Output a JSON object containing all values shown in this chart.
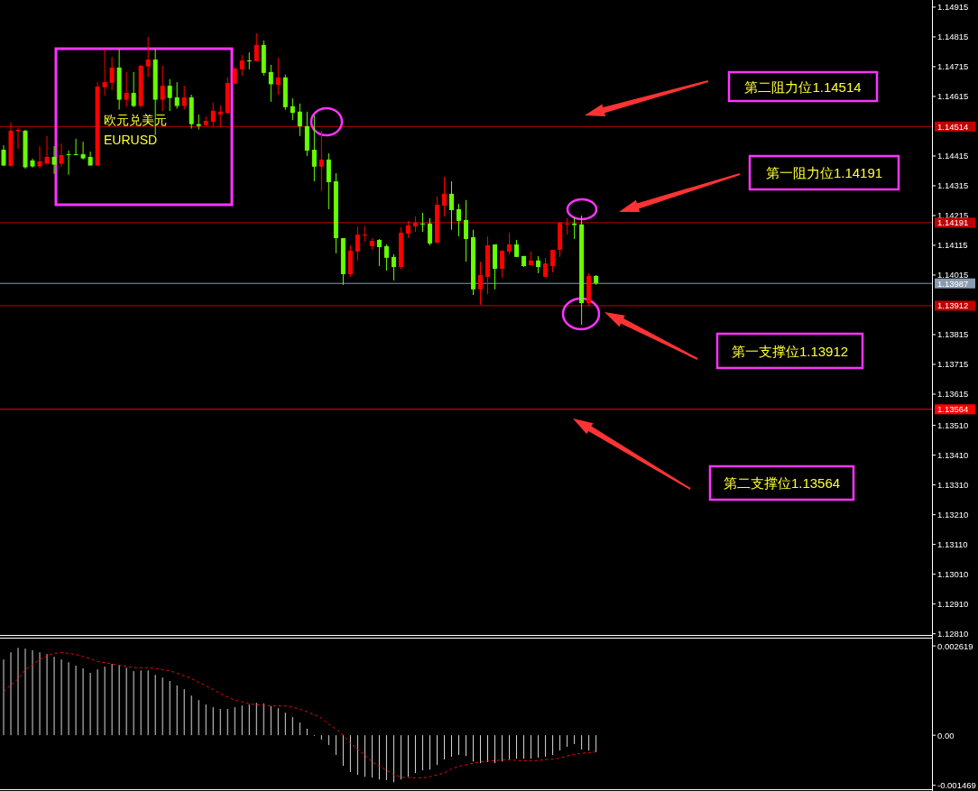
{
  "chart_data": [
    {
      "type": "candlestick",
      "title": "欧元兑美元",
      "subtitle": "EURUSD",
      "tick_labels": "y",
      "categories": [
        null,
        null,
        null,
        null,
        null,
        null,
        null,
        null,
        null,
        null,
        null,
        null,
        null,
        null,
        null,
        null,
        null,
        null,
        null,
        null,
        null,
        null,
        null,
        null,
        null,
        null,
        null,
        null,
        null,
        null,
        null,
        null,
        null,
        null,
        null,
        null,
        null,
        null,
        null,
        null,
        null,
        null,
        null,
        null,
        null,
        null,
        null,
        null,
        null,
        null,
        null,
        null,
        null,
        null,
        null,
        null,
        null,
        null,
        null,
        null,
        null,
        null,
        null,
        null,
        null,
        null,
        null,
        null,
        null,
        null,
        null,
        null,
        null,
        null,
        null,
        null,
        null,
        null,
        null,
        null,
        null,
        null,
        null,
        null,
        null,
        null,
        null,
        null,
        null,
        null,
        null,
        null,
        null,
        null,
        null,
        null,
        null,
        null,
        null,
        null,
        null,
        null,
        null,
        null,
        null,
        null,
        null,
        null,
        null,
        null,
        null,
        null,
        null,
        null,
        null,
        null,
        null,
        null,
        null,
        null,
        null,
        null,
        null,
        null,
        null,
        null,
        null,
        null,
        null
      ],
      "ohlc": [
        [
          1.14436,
          1.14451,
          1.14381,
          1.14383
        ],
        [
          1.14382,
          1.14527,
          1.14379,
          1.145
        ],
        [
          1.14498,
          1.14509,
          1.14439,
          1.14503
        ],
        [
          1.145,
          1.14503,
          1.14372,
          1.14377
        ],
        [
          1.144,
          1.14406,
          1.14376,
          1.1438
        ],
        [
          1.1438,
          1.14448,
          1.14374,
          1.14397
        ],
        [
          1.14389,
          1.14482,
          1.14389,
          1.14412
        ],
        [
          1.14412,
          1.14448,
          1.14355,
          1.14386
        ],
        [
          1.14389,
          1.14457,
          1.14379,
          1.14418
        ],
        [
          1.14421,
          1.14433,
          1.14352,
          1.14419
        ],
        [
          1.14421,
          1.14473,
          1.14418,
          1.14419
        ],
        [
          1.14421,
          1.14463,
          1.14403,
          1.14407
        ],
        [
          1.14412,
          1.1443,
          1.14383,
          1.14383
        ],
        [
          1.14383,
          1.14663,
          1.14383,
          1.14648
        ],
        [
          1.14646,
          1.14773,
          1.14618,
          1.14663
        ],
        [
          1.14661,
          1.14748,
          1.14636,
          1.14712
        ],
        [
          1.14712,
          1.14773,
          1.14571,
          1.14604
        ],
        [
          1.14604,
          1.14697,
          1.1458,
          1.14627
        ],
        [
          1.14627,
          1.14697,
          1.14579,
          1.14583
        ],
        [
          1.14583,
          1.14721,
          1.14577,
          1.14718
        ],
        [
          1.14716,
          1.14815,
          1.1468,
          1.14739
        ],
        [
          1.14739,
          1.14773,
          1.14485,
          1.14604
        ],
        [
          1.14604,
          1.14718,
          1.14566,
          1.14651
        ],
        [
          1.14651,
          1.14673,
          1.14566,
          1.1461
        ],
        [
          1.14612,
          1.14663,
          1.14574,
          1.14583
        ],
        [
          1.14583,
          1.14651,
          1.14571,
          1.14612
        ],
        [
          1.14612,
          1.14621,
          1.14507,
          1.14522
        ],
        [
          1.14522,
          1.14554,
          1.14504,
          1.14516
        ],
        [
          1.14519,
          1.14548,
          1.14516,
          1.14533
        ],
        [
          1.1453,
          1.14594,
          1.14515,
          1.14567
        ],
        [
          1.14555,
          1.14585,
          1.14512,
          1.14564
        ],
        [
          1.1456,
          1.14679,
          1.14557,
          1.1466
        ],
        [
          1.14658,
          1.14712,
          1.14656,
          1.14709
        ],
        [
          1.14706,
          1.14754,
          1.14685,
          1.14736
        ],
        [
          1.14736,
          1.14763,
          1.14706,
          1.14734
        ],
        [
          1.14733,
          1.14827,
          1.14733,
          1.14788
        ],
        [
          1.14788,
          1.14803,
          1.14685,
          1.14694
        ],
        [
          1.14697,
          1.14721,
          1.14597,
          1.14656
        ],
        [
          1.14654,
          1.14745,
          1.14621,
          1.14679
        ],
        [
          1.14679,
          1.14688,
          1.1457,
          1.14579
        ],
        [
          1.14582,
          1.14609,
          1.14536,
          1.1456
        ],
        [
          1.14564,
          1.14591,
          1.14482,
          1.14515
        ],
        [
          1.14515,
          1.14564,
          1.14415,
          1.14433
        ],
        [
          1.14436,
          1.14551,
          1.1433,
          1.14379
        ],
        [
          1.14379,
          1.145,
          1.14297,
          1.14403
        ],
        [
          1.14403,
          1.14424,
          1.14236,
          1.14327
        ],
        [
          1.1433,
          1.14357,
          1.14088,
          1.14139
        ],
        [
          1.14139,
          1.14139,
          1.13982,
          1.14018
        ],
        [
          1.14018,
          1.14115,
          1.14009,
          1.14097
        ],
        [
          1.14094,
          1.14179,
          1.14064,
          1.14151
        ],
        [
          1.14149,
          1.14179,
          1.14127,
          1.14151
        ],
        [
          1.14112,
          1.14139,
          1.141,
          1.1413
        ],
        [
          1.14133,
          1.14136,
          1.14045,
          1.14109
        ],
        [
          1.14112,
          1.14118,
          1.1403,
          1.14073
        ],
        [
          1.14076,
          1.14085,
          1.13997,
          1.14042
        ],
        [
          1.14042,
          1.14176,
          1.14036,
          1.14157
        ],
        [
          1.14154,
          1.14197,
          1.14139,
          1.14182
        ],
        [
          1.14179,
          1.14212,
          1.1416,
          1.14191
        ],
        [
          1.14188,
          1.14224,
          1.1416,
          1.14186
        ],
        [
          1.14188,
          1.14206,
          1.14115,
          1.14121
        ],
        [
          1.14124,
          1.14279,
          1.14121,
          1.14251
        ],
        [
          1.14248,
          1.14345,
          1.14212,
          1.14288
        ],
        [
          1.14288,
          1.1433,
          1.14167,
          1.14233
        ],
        [
          1.14236,
          1.14254,
          1.14145,
          1.14197
        ],
        [
          1.142,
          1.14267,
          1.1406,
          1.14136
        ],
        [
          1.14142,
          1.14167,
          1.13948,
          1.13967
        ],
        [
          1.13967,
          1.1406,
          1.13915,
          1.14015
        ],
        [
          1.14009,
          1.14145,
          1.13951,
          1.14115
        ],
        [
          1.14118,
          1.14118,
          1.13967,
          1.14036
        ],
        [
          1.14036,
          1.14097,
          1.14006,
          1.14097
        ],
        [
          1.14094,
          1.14157,
          1.14085,
          1.14118
        ],
        [
          1.14118,
          1.14133,
          1.14076,
          1.14076
        ],
        [
          1.14079,
          1.14079,
          1.14042,
          1.14045
        ],
        [
          1.14048,
          1.14094,
          1.14048,
          1.14064
        ],
        [
          1.14064,
          1.14079,
          1.14021,
          1.14042
        ],
        [
          1.14009,
          1.14073,
          1.14009,
          1.14054
        ],
        [
          1.14045,
          1.141,
          1.14024,
          1.141
        ],
        [
          1.141,
          1.14191,
          1.14076,
          1.14191
        ],
        [
          1.14185,
          1.14206,
          1.14151,
          1.14188
        ],
        [
          1.14188,
          1.14209,
          1.14136,
          1.14183
        ],
        [
          1.14185,
          1.14215,
          1.13848,
          1.13921
        ],
        [
          1.13921,
          1.14021,
          1.13912,
          1.14012
        ],
        [
          1.14012,
          1.14015,
          1.13982,
          1.13988
        ],
        null,
        null,
        null,
        null,
        null,
        null,
        null,
        null,
        null,
        null,
        null,
        null,
        null,
        null,
        null,
        null,
        null,
        null,
        null,
        null,
        null,
        null,
        null,
        null,
        null,
        null,
        null,
        null,
        null,
        null,
        null,
        null,
        null,
        null,
        null,
        null,
        null,
        null,
        null,
        null,
        null,
        null,
        null,
        null,
        null,
        null
      ],
      "colors": [
        "#66ff00",
        "#ff0000",
        "#ff0000",
        "#66ff00",
        "#66ff00",
        "#ff0000",
        "#ff0000",
        "#66ff00",
        "#ff0000",
        "#66ff00",
        "#66ff00",
        "#66ff00",
        "#66ff00",
        "#ff0000",
        "#ff0000",
        "#ff0000",
        "#66ff00",
        "#ff0000",
        "#66ff00",
        "#ff0000",
        "#ff0000",
        "#66ff00",
        "#ff0000",
        "#66ff00",
        "#66ff00",
        "#ff0000",
        "#66ff00",
        "#66ff00",
        "#ff0000",
        "#ff0000",
        "#ff0000",
        "#ff0000",
        "#ff0000",
        "#ff0000",
        "#66ff00",
        "#ff0000",
        "#66ff00",
        "#66ff00",
        "#ff0000",
        "#66ff00",
        "#66ff00",
        "#66ff00",
        "#66ff00",
        "#66ff00",
        "#ff0000",
        "#66ff00",
        "#66ff00",
        "#66ff00",
        "#ff0000",
        "#ff0000",
        "#ff0000",
        "#ff0000",
        "#66ff00",
        "#66ff00",
        "#66ff00",
        "#ff0000",
        "#ff0000",
        "#ff0000",
        "#66ff00",
        "#66ff00",
        "#ff0000",
        "#ff0000",
        "#66ff00",
        "#66ff00",
        "#66ff00",
        "#66ff00",
        "#ff0000",
        "#ff0000",
        "#66ff00",
        "#ff0000",
        "#ff0000",
        "#66ff00",
        "#66ff00",
        "#ff0000",
        "#66ff00",
        "#ff0000",
        "#ff0000",
        "#ff0000",
        "#ff0000",
        "#66ff00",
        "#66ff00",
        "#ff0000",
        "#66ff00",
        null,
        null,
        null,
        null,
        null,
        null,
        null,
        null,
        null,
        null,
        null,
        null,
        null,
        null,
        null,
        null,
        null,
        null,
        null,
        null,
        null,
        null,
        null,
        null,
        null,
        null,
        null,
        null,
        null,
        null,
        null,
        null,
        null,
        null,
        null,
        null,
        null,
        null,
        null,
        null,
        null,
        null,
        null,
        null,
        null,
        null
      ],
      "ylim": [
        1.12806,
        1.14939
      ],
      "yticks": [
        1.14915,
        1.14815,
        1.14715,
        1.14615,
        1.14415,
        1.14315,
        1.14215,
        1.14115,
        1.14015,
        1.13815,
        1.13715,
        1.13615,
        {
          "value": 1.1351,
          "label": "1.13510"
        },
        {
          "value": 1.1341,
          "label": "1.13410"
        },
        {
          "value": 1.1331,
          "label": "1.13310"
        },
        {
          "value": 1.1321,
          "label": "1.13210"
        },
        {
          "value": 1.1311,
          "label": "1.13110"
        },
        {
          "value": 1.1301,
          "label": "1.13010"
        },
        {
          "value": 1.1291,
          "label": "1.12910"
        },
        {
          "value": 1.1281,
          "label": "1.12810"
        }
      ],
      "ref_lines": [
        {
          "axis": "y",
          "value": 1.14514,
          "label": "1.14514",
          "color": "#c00000"
        },
        {
          "axis": "y",
          "value": 1.14191,
          "label": "1.14191",
          "color": "#c00000"
        },
        {
          "axis": "y",
          "value": 1.13987,
          "label": "1.13987",
          "color": "#8a9bb0"
        },
        {
          "axis": "y",
          "value": 1.13912,
          "label": "1.13912",
          "color": "#c00000"
        },
        {
          "axis": "y",
          "value": 1.13564,
          "label": "1.13564",
          "color": "#ff0000"
        }
      ],
      "annotations": [
        "第二阻力位1.14514",
        "第一阻力位1.14191",
        "第一支撑位1.13912",
        "第二支撑位1.13564"
      ]
    },
    {
      "type": "bar",
      "tick_labels": "y",
      "categories": [
        null,
        null,
        null,
        null,
        null,
        null,
        null,
        null,
        null,
        null,
        null,
        null,
        null,
        null,
        null,
        null,
        null,
        null,
        null,
        null,
        null,
        null,
        null,
        null,
        null,
        null,
        null,
        null,
        null,
        null,
        null,
        null,
        null,
        null,
        null,
        null,
        null,
        null,
        null,
        null,
        null,
        null,
        null,
        null,
        null,
        null,
        null,
        null,
        null,
        null,
        null,
        null,
        null,
        null,
        null,
        null,
        null,
        null,
        null,
        null,
        null,
        null,
        null,
        null,
        null,
        null,
        null,
        null,
        null,
        null,
        null,
        null,
        null,
        null,
        null,
        null,
        null,
        null,
        null,
        null,
        null,
        null,
        null,
        null,
        null,
        null,
        null,
        null,
        null,
        null,
        null,
        null,
        null,
        null,
        null,
        null,
        null,
        null,
        null,
        null,
        null,
        null,
        null,
        null,
        null,
        null,
        null,
        null,
        null,
        null,
        null,
        null,
        null,
        null,
        null,
        null,
        null,
        null,
        null,
        null,
        null,
        null,
        null,
        null,
        null,
        null,
        null,
        null,
        null
      ],
      "ylim": [
        -0.00161,
        0.00286
      ],
      "yticks": [
        0.002619,
        {
          "value": 0,
          "label": "0.00"
        },
        -0.001469
      ],
      "series": [
        {
          "color": "#d8d8d8",
          "values": [
            0.00222,
            0.00243,
            0.00256,
            0.00254,
            0.00249,
            0.00243,
            0.00238,
            0.0023,
            0.00222,
            0.00214,
            0.00204,
            0.00196,
            0.00183,
            0.00193,
            0.00201,
            0.00209,
            0.00205,
            0.00198,
            0.00188,
            0.0019,
            0.0019,
            0.00177,
            0.00169,
            0.00159,
            0.00146,
            0.00135,
            0.00116,
            0.00103,
            0.0009,
            0.00082,
            0.00077,
            0.00077,
            0.00082,
            0.00087,
            0.0009,
            0.00095,
            0.00093,
            0.00085,
            0.00079,
            0.00066,
            0.00053,
            0.00037,
            0.00019,
            0,
            -0.00013,
            -0.00029,
            -0.00058,
            -0.0009,
            -0.00108,
            -0.00116,
            -0.00122,
            -0.00124,
            -0.0013,
            -0.00132,
            -0.00138,
            -0.0013,
            -0.00122,
            -0.00111,
            -0.00103,
            -0.00101,
            -0.00087,
            -0.00071,
            -0.00063,
            -0.00058,
            -0.00061,
            -0.00077,
            -0.00082,
            -0.00079,
            -0.00082,
            -0.00077,
            -0.00071,
            -0.00069,
            -0.00069,
            -0.00069,
            -0.00066,
            -0.00063,
            -0.00058,
            -0.00045,
            -0.00034,
            -0.00026,
            -0.00042,
            -0.00045,
            -0.0005,
            null,
            null,
            null,
            null,
            null,
            null,
            null,
            null,
            null,
            null,
            null,
            null,
            null,
            null,
            null,
            null,
            null,
            null,
            null,
            null,
            null,
            null,
            null,
            null,
            null,
            null,
            null,
            null,
            null,
            null,
            null,
            null,
            null,
            null,
            null,
            null,
            null,
            null,
            null,
            null,
            null,
            null,
            null,
            null,
            null,
            null
          ]
        },
        {
          "type": "line",
          "color": "#ff0000",
          "line_style": "dashed",
          "values": [
            0.00128,
            0.00147,
            0.00165,
            0.00192,
            0.00207,
            0.00222,
            0.00233,
            0.0024,
            0.00242,
            0.0024,
            0.00237,
            0.00231,
            0.00224,
            0.00216,
            0.00213,
            0.00209,
            0.00205,
            0.00202,
            0.00198,
            0.00198,
            0.00198,
            0.00196,
            0.00192,
            0.00189,
            0.00182,
            0.00174,
            0.00166,
            0.00155,
            0.00145,
            0.00134,
            0.00122,
            0.00112,
            0.00103,
            0.00098,
            0.00092,
            0.00089,
            0.00088,
            0.00086,
            0.00086,
            0.00086,
            0.00082,
            0.00076,
            0.00069,
            0.0006,
            0.0005,
            0.00032,
            0.00018,
            0,
            -0.00023,
            -0.00041,
            -0.00059,
            -0.00078,
            -0.00091,
            -0.00103,
            -0.00115,
            -0.00123,
            -0.00125,
            -0.00125,
            -0.00125,
            -0.00122,
            -0.00116,
            -0.00111,
            -0.00099,
            -0.00091,
            -0.00087,
            -0.00082,
            -0.00078,
            -0.00076,
            -0.00075,
            -0.00073,
            -0.00072,
            -0.00074,
            -0.00075,
            -0.00075,
            -0.00074,
            -0.00072,
            -0.0007,
            -0.00067,
            -0.00061,
            -0.00056,
            -0.00053,
            -0.00051,
            -0.00049,
            null,
            null,
            null,
            null,
            null,
            null,
            null,
            null,
            null,
            null,
            null,
            null,
            null,
            null,
            null,
            null,
            null,
            null,
            null,
            null,
            null,
            null,
            null,
            null,
            null,
            null,
            null,
            null,
            null,
            null,
            null,
            null,
            null,
            null,
            null,
            null,
            null,
            null,
            null,
            null,
            null,
            null,
            null,
            null,
            null,
            null
          ]
        }
      ]
    }
  ]
}
